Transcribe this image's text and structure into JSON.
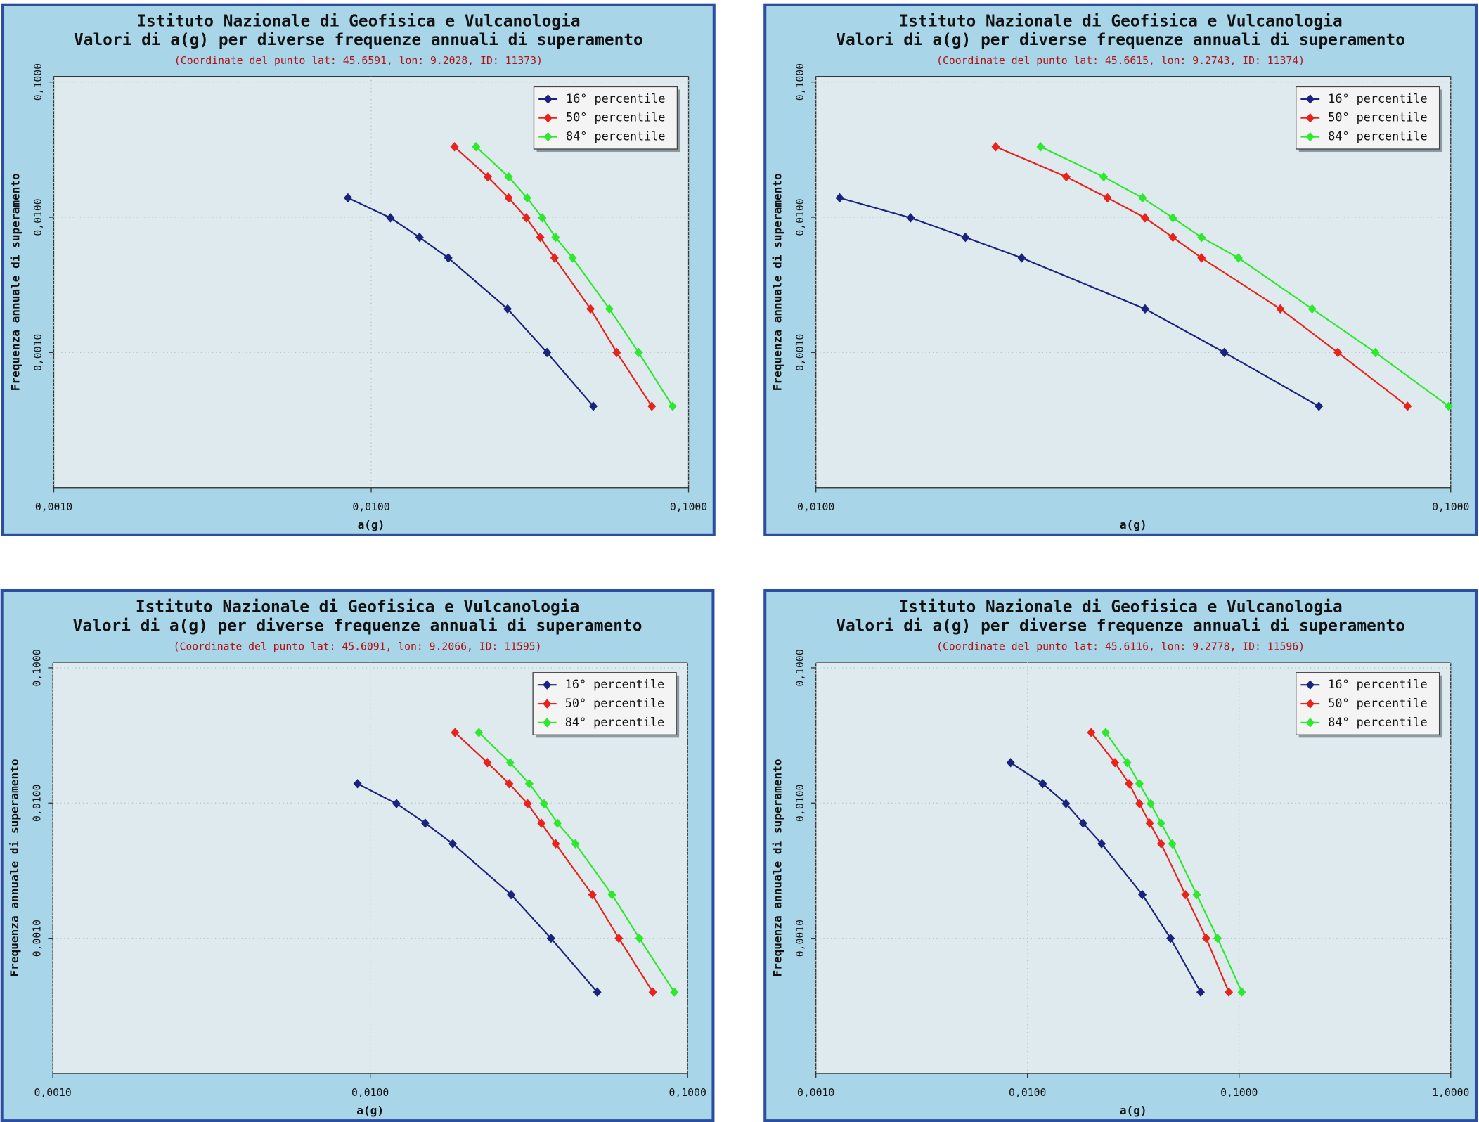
{
  "chart_data": [
    {
      "type": "line",
      "title": "Istituto Nazionale di Geofisica e Vulcanologia",
      "subtitle": "Valori di a(g) per diverse frequenze annuali di superamento",
      "note": "(Coordinate del punto lat: 45.6591, lon: 9.2028, ID: 11373)",
      "x_label": "a(g)",
      "y_label": "Frequenza annuale di superamento",
      "xscale": "log",
      "yscale": "log",
      "legend": "upper right",
      "grid": true,
      "xlim": [
        0.001,
        0.1
      ],
      "xticks": [
        {
          "value": 0.001,
          "label": "0,0010"
        },
        {
          "value": 0.01,
          "label": "0,0100"
        },
        {
          "value": 0.1,
          "label": "0,1000"
        }
      ],
      "ylim": [
        0.0001,
        0.11
      ],
      "yticks": [
        {
          "value": 0.001,
          "label": "0,0010"
        },
        {
          "value": 0.01,
          "label": "0,0100"
        },
        {
          "value": 0.1,
          "label": "0,1000"
        }
      ],
      "series": [
        {
          "name": "16° percentile",
          "color": "#1a237e",
          "x": [
            0.00845,
            0.0115,
            0.0142,
            0.0175,
            0.0269,
            0.0358,
            0.0501
          ],
          "values": [
            0.0139,
            0.0099,
            0.0071,
            0.005,
            0.0021,
            0.001,
            0.0004
          ]
        },
        {
          "name": "50° percentile",
          "color": "#e8231c",
          "x": [
            0.0183,
            0.0233,
            0.0271,
            0.0308,
            0.0341,
            0.0378,
            0.0491,
            0.0594,
            0.0766
          ],
          "values": [
            0.0332,
            0.0199,
            0.0139,
            0.0099,
            0.0071,
            0.005,
            0.0021,
            0.001,
            0.0004
          ]
        },
        {
          "name": "84° percentile",
          "color": "#2ee82e",
          "x": [
            0.0214,
            0.0271,
            0.031,
            0.0346,
            0.0381,
            0.0431,
            0.0563,
            0.0696,
            0.0891
          ],
          "values": [
            0.0332,
            0.0199,
            0.0139,
            0.0099,
            0.0071,
            0.005,
            0.0021,
            0.001,
            0.0004
          ]
        }
      ]
    },
    {
      "type": "line",
      "title": "Istituto Nazionale di Geofisica e Vulcanologia",
      "subtitle": "Valori di a(g) per diverse frequenze annuali di superamento",
      "note": "(Coordinate del punto lat: 45.6615, lon: 9.2743, ID: 11374)",
      "x_label": "a(g)",
      "y_label": "Frequenza annuale di superamento",
      "xscale": "log",
      "yscale": "log",
      "legend": "upper right",
      "grid": true,
      "xlim": [
        0.01,
        0.1
      ],
      "xticks": [
        {
          "value": 0.01,
          "label": "0,0100"
        },
        {
          "value": 0.1,
          "label": "0,1000"
        }
      ],
      "ylim": [
        0.0001,
        0.11
      ],
      "yticks": [
        {
          "value": 0.001,
          "label": "0,0010"
        },
        {
          "value": 0.01,
          "label": "0,0100"
        },
        {
          "value": 0.1,
          "label": "0,1000"
        }
      ],
      "series": [
        {
          "name": "16° percentile",
          "color": "#1a237e",
          "x": [
            0.0109,
            0.0141,
            0.0172,
            0.0211,
            0.033,
            0.044,
            0.062
          ],
          "values": [
            0.0139,
            0.0099,
            0.0071,
            0.005,
            0.0021,
            0.001,
            0.0004
          ]
        },
        {
          "name": "50° percentile",
          "color": "#e8231c",
          "x": [
            0.0192,
            0.0248,
            0.0288,
            0.033,
            0.0365,
            0.0405,
            0.0539,
            0.0664,
            0.0855
          ],
          "values": [
            0.0332,
            0.0199,
            0.0139,
            0.0099,
            0.0071,
            0.005,
            0.0021,
            0.001,
            0.0004
          ]
        },
        {
          "name": "84° percentile",
          "color": "#2ee82e",
          "x": [
            0.0226,
            0.0284,
            0.0327,
            0.0365,
            0.0405,
            0.0463,
            0.0605,
            0.0761,
            0.0993
          ],
          "values": [
            0.0332,
            0.0199,
            0.0139,
            0.0099,
            0.0071,
            0.005,
            0.0021,
            0.001,
            0.0004
          ]
        }
      ]
    },
    {
      "type": "line",
      "title": "Istituto Nazionale di Geofisica e Vulcanologia",
      "subtitle": "Valori di a(g) per diverse frequenze annuali di superamento",
      "note": "(Coordinate del punto lat: 45.6091, lon: 9.2066, ID: 11595)",
      "x_label": "a(g)",
      "y_label": "Frequenza annuale di superamento",
      "xscale": "log",
      "yscale": "log",
      "legend": "upper right",
      "grid": true,
      "xlim": [
        0.001,
        0.1
      ],
      "xticks": [
        {
          "value": 0.001,
          "label": "0,0010"
        },
        {
          "value": 0.01,
          "label": "0,0100"
        },
        {
          "value": 0.1,
          "label": "0,1000"
        }
      ],
      "ylim": [
        0.0001,
        0.11
      ],
      "yticks": [
        {
          "value": 0.001,
          "label": "0,0010"
        },
        {
          "value": 0.01,
          "label": "0,0100"
        },
        {
          "value": 0.1,
          "label": "0,1000"
        }
      ],
      "series": [
        {
          "name": "16° percentile",
          "color": "#1a237e",
          "x": [
            0.00912,
            0.0121,
            0.0149,
            0.0182,
            0.0278,
            0.0371,
            0.0519
          ],
          "values": [
            0.0139,
            0.0099,
            0.0071,
            0.005,
            0.0021,
            0.001,
            0.0004
          ]
        },
        {
          "name": "50° percentile",
          "color": "#e8231c",
          "x": [
            0.0185,
            0.0234,
            0.0274,
            0.0313,
            0.0346,
            0.0384,
            0.0501,
            0.0607,
            0.0777
          ],
          "values": [
            0.0332,
            0.0199,
            0.0139,
            0.0099,
            0.0071,
            0.005,
            0.0021,
            0.001,
            0.0004
          ]
        },
        {
          "name": "84° percentile",
          "color": "#2ee82e",
          "x": [
            0.022,
            0.0276,
            0.0317,
            0.0353,
            0.0389,
            0.0443,
            0.0578,
            0.0705,
            0.0908
          ],
          "values": [
            0.0332,
            0.0199,
            0.0139,
            0.0099,
            0.0071,
            0.005,
            0.0021,
            0.001,
            0.0004
          ]
        }
      ]
    },
    {
      "type": "line",
      "title": "Istituto Nazionale di Geofisica e Vulcanologia",
      "subtitle": "Valori di a(g) per diverse frequenze annuali di superamento",
      "note": "(Coordinate del punto lat: 45.6116, lon: 9.2778, ID: 11596)",
      "x_label": "a(g)",
      "y_label": "Frequenza annuale di superamento",
      "xscale": "log",
      "yscale": "log",
      "legend": "upper right",
      "grid": true,
      "xlim": [
        0.001,
        1
      ],
      "xticks": [
        {
          "value": 0.001,
          "label": "0,0010"
        },
        {
          "value": 0.01,
          "label": "0,0100"
        },
        {
          "value": 0.1,
          "label": "0,1000"
        },
        {
          "value": 1,
          "label": "1,0000"
        }
      ],
      "ylim": [
        0.0001,
        0.11
      ],
      "yticks": [
        {
          "value": 0.001,
          "label": "0,0010"
        },
        {
          "value": 0.01,
          "label": "0,0100"
        },
        {
          "value": 0.1,
          "label": "0,1000"
        }
      ],
      "series": [
        {
          "name": "16° percentile",
          "color": "#1a237e",
          "x": [
            0.00832,
            0.0118,
            0.0152,
            0.0183,
            0.0224,
            0.0349,
            0.0474,
            0.0658
          ],
          "values": [
            0.0199,
            0.0139,
            0.0099,
            0.0071,
            0.005,
            0.0021,
            0.001,
            0.0004
          ]
        },
        {
          "name": "50° percentile",
          "color": "#e8231c",
          "x": [
            0.02,
            0.0259,
            0.0302,
            0.0338,
            0.0378,
            0.0428,
            0.0558,
            0.0699,
            0.0894
          ],
          "values": [
            0.0332,
            0.0199,
            0.0139,
            0.0099,
            0.0071,
            0.005,
            0.0021,
            0.001,
            0.0004
          ]
        },
        {
          "name": "84° percentile",
          "color": "#2ee82e",
          "x": [
            0.0234,
            0.0296,
            0.0338,
            0.0382,
            0.0428,
            0.0483,
            0.0631,
            0.0791,
            0.103
          ],
          "values": [
            0.0332,
            0.0199,
            0.0139,
            0.0099,
            0.0071,
            0.005,
            0.0021,
            0.001,
            0.0004
          ]
        }
      ]
    }
  ]
}
